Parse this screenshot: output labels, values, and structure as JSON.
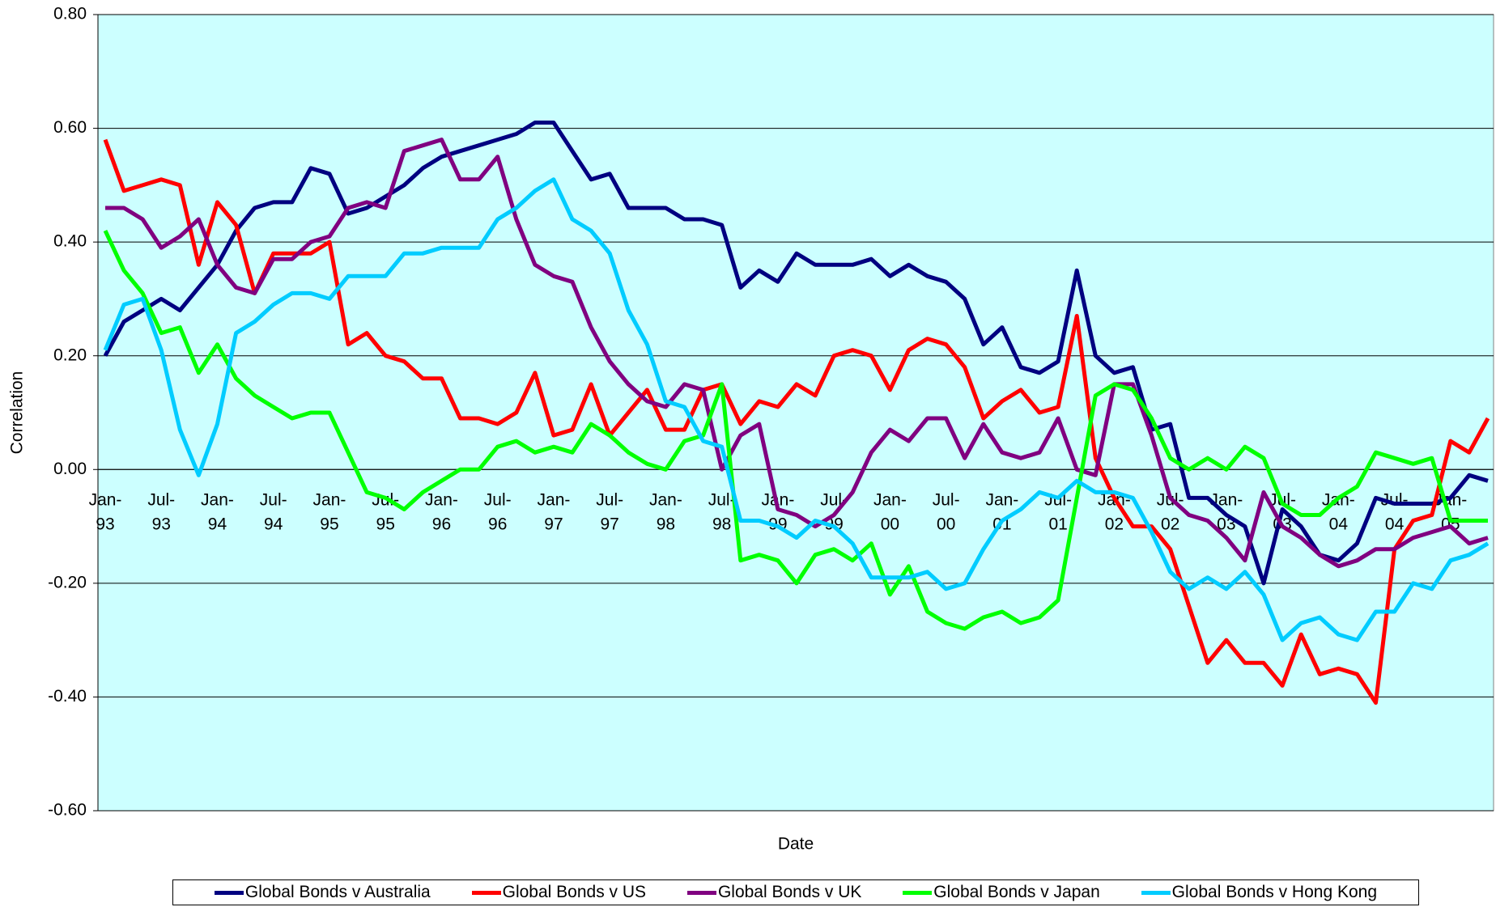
{
  "chart_data": {
    "type": "line",
    "x_label": "Date",
    "y_label": "Correlation",
    "categories": [
      "Jan-93",
      null,
      null,
      "Jul-93",
      null,
      null,
      "Jan-94",
      null,
      null,
      "Jul-94",
      null,
      null,
      "Jan-95",
      null,
      null,
      "Jul-95",
      null,
      null,
      "Jan-96",
      null,
      null,
      "Jul-96",
      null,
      null,
      "Jan-97",
      null,
      null,
      "Jul-97",
      null,
      null,
      "Jan-98",
      null,
      null,
      "Jul-98",
      null,
      null,
      "Jan-99",
      null,
      null,
      "Jul-99",
      null,
      null,
      "Jan-00",
      null,
      null,
      "Jul-00",
      null,
      null,
      "Jan-01",
      null,
      null,
      "Jul-01",
      null,
      null,
      "Jan-02",
      null,
      null,
      "Jul-02",
      null,
      null,
      "Jan-03",
      null,
      null,
      "Jul-03",
      null,
      null,
      "Jan-04",
      null,
      null,
      "Jul-04",
      null,
      null,
      "Jan-05",
      null,
      null
    ],
    "ylim": [
      -0.6,
      0.8
    ],
    "yticks": [
      {
        "value": -0.6,
        "label": "-0.60"
      },
      {
        "value": -0.4,
        "label": "-0.40"
      },
      {
        "value": -0.2,
        "label": "-0.20"
      },
      {
        "value": 0,
        "label": "0.00"
      },
      {
        "value": 0.2,
        "label": "0.20"
      },
      {
        "value": 0.4,
        "label": "0.40"
      },
      {
        "value": 0.6,
        "label": "0.60"
      },
      {
        "value": 0.8,
        "label": "0.80"
      }
    ],
    "grid": true,
    "legend": "bottom",
    "series": [
      {
        "name": "Global Bonds v Australia",
        "color": "#000080",
        "values": [
          0.2,
          0.26,
          0.28,
          0.3,
          0.28,
          0.32,
          0.36,
          0.42,
          0.46,
          0.47,
          0.47,
          0.53,
          0.52,
          0.45,
          0.46,
          0.48,
          0.5,
          0.53,
          0.55,
          0.56,
          0.57,
          0.58,
          0.59,
          0.61,
          0.61,
          0.56,
          0.51,
          0.52,
          0.46,
          0.46,
          0.46,
          0.44,
          0.44,
          0.43,
          0.32,
          0.35,
          0.33,
          0.38,
          0.36,
          0.36,
          0.36,
          0.37,
          0.34,
          0.36,
          0.34,
          0.33,
          0.3,
          0.22,
          0.25,
          0.18,
          0.17,
          0.19,
          0.35,
          0.2,
          0.17,
          0.18,
          0.07,
          0.08,
          -0.05,
          -0.05,
          -0.08,
          -0.1,
          -0.2,
          -0.07,
          -0.1,
          -0.15,
          -0.16,
          -0.13,
          -0.05,
          -0.06,
          -0.06,
          -0.06,
          -0.05,
          -0.01,
          -0.02
        ]
      },
      {
        "name": "Global Bonds v US",
        "color": "#ff0000",
        "values": [
          0.58,
          0.49,
          0.5,
          0.51,
          0.5,
          0.36,
          0.47,
          0.43,
          0.31,
          0.38,
          0.38,
          0.38,
          0.4,
          0.22,
          0.24,
          0.2,
          0.19,
          0.16,
          0.16,
          0.09,
          0.09,
          0.08,
          0.1,
          0.17,
          0.06,
          0.07,
          0.15,
          0.06,
          0.1,
          0.14,
          0.07,
          0.07,
          0.14,
          0.15,
          0.08,
          0.12,
          0.11,
          0.15,
          0.13,
          0.2,
          0.21,
          0.2,
          0.14,
          0.21,
          0.23,
          0.22,
          0.18,
          0.09,
          0.12,
          0.14,
          0.1,
          0.11,
          0.27,
          0.02,
          -0.05,
          -0.1,
          -0.1,
          -0.14,
          -0.24,
          -0.34,
          -0.3,
          -0.34,
          -0.34,
          -0.38,
          -0.29,
          -0.36,
          -0.35,
          -0.36,
          -0.41,
          -0.14,
          -0.09,
          -0.08,
          0.05,
          0.03,
          0.09
        ]
      },
      {
        "name": "Global Bonds v UK",
        "color": "#800080",
        "values": [
          0.46,
          0.46,
          0.44,
          0.39,
          0.41,
          0.44,
          0.36,
          0.32,
          0.31,
          0.37,
          0.37,
          0.4,
          0.41,
          0.46,
          0.47,
          0.46,
          0.56,
          0.57,
          0.58,
          0.51,
          0.51,
          0.55,
          0.44,
          0.36,
          0.34,
          0.33,
          0.25,
          0.19,
          0.15,
          0.12,
          0.11,
          0.15,
          0.14,
          0.0,
          0.06,
          0.08,
          -0.07,
          -0.08,
          -0.1,
          -0.08,
          -0.04,
          0.03,
          0.07,
          0.05,
          0.09,
          0.09,
          0.02,
          0.08,
          0.03,
          0.02,
          0.03,
          0.09,
          0.0,
          -0.01,
          0.15,
          0.15,
          0.06,
          -0.05,
          -0.08,
          -0.09,
          -0.12,
          -0.16,
          -0.04,
          -0.1,
          -0.12,
          -0.15,
          -0.17,
          -0.16,
          -0.14,
          -0.14,
          -0.12,
          -0.11,
          -0.1,
          -0.13,
          -0.12
        ]
      },
      {
        "name": "Global Bonds v Japan",
        "color": "#00ff00",
        "values": [
          0.42,
          0.35,
          0.31,
          0.24,
          0.25,
          0.17,
          0.22,
          0.16,
          0.13,
          0.11,
          0.09,
          0.1,
          0.1,
          0.03,
          -0.04,
          -0.05,
          -0.07,
          -0.04,
          -0.02,
          0.0,
          0.0,
          0.04,
          0.05,
          0.03,
          0.04,
          0.03,
          0.08,
          0.06,
          0.03,
          0.01,
          0.0,
          0.05,
          0.06,
          0.15,
          -0.16,
          -0.15,
          -0.16,
          -0.2,
          -0.15,
          -0.14,
          -0.16,
          -0.13,
          -0.22,
          -0.17,
          -0.25,
          -0.27,
          -0.28,
          -0.26,
          -0.25,
          -0.27,
          -0.26,
          -0.23,
          -0.05,
          0.13,
          0.15,
          0.14,
          0.09,
          0.02,
          0.0,
          0.02,
          0.0,
          0.04,
          0.02,
          -0.06,
          -0.08,
          -0.08,
          -0.05,
          -0.03,
          0.03,
          0.02,
          0.01,
          0.02,
          -0.09,
          -0.09,
          -0.09
        ]
      },
      {
        "name": "Global Bonds v Hong Kong",
        "color": "#00ccff",
        "values": [
          0.21,
          0.29,
          0.3,
          0.21,
          0.07,
          -0.01,
          0.08,
          0.24,
          0.26,
          0.29,
          0.31,
          0.31,
          0.3,
          0.34,
          0.34,
          0.34,
          0.38,
          0.38,
          0.39,
          0.39,
          0.39,
          0.44,
          0.46,
          0.49,
          0.51,
          0.44,
          0.42,
          0.38,
          0.28,
          0.22,
          0.12,
          0.11,
          0.05,
          0.04,
          -0.09,
          -0.09,
          -0.1,
          -0.12,
          -0.09,
          -0.1,
          -0.13,
          -0.19,
          -0.19,
          -0.19,
          -0.18,
          -0.21,
          -0.2,
          -0.14,
          -0.09,
          -0.07,
          -0.04,
          -0.05,
          -0.02,
          -0.04,
          -0.04,
          -0.05,
          -0.11,
          -0.18,
          -0.21,
          -0.19,
          -0.21,
          -0.18,
          -0.22,
          -0.3,
          -0.27,
          -0.26,
          -0.29,
          -0.3,
          -0.25,
          -0.25,
          -0.2,
          -0.21,
          -0.16,
          -0.15,
          -0.13
        ]
      }
    ]
  }
}
